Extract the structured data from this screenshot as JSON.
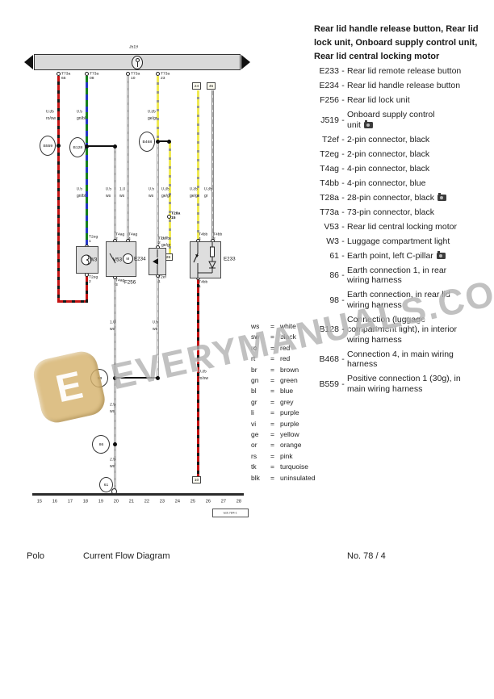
{
  "header": {
    "title": "Rear lid handle release button, Rear lid\nlock unit, Onboard supply control unit,\nRear lid central locking motor"
  },
  "legend": {
    "dash": "-",
    "items": [
      {
        "code": "E233",
        "desc": "Rear lid remote release button"
      },
      {
        "code": "E234",
        "desc": "Rear lid handle release button"
      },
      {
        "code": "F256",
        "desc": "Rear lid lock unit"
      },
      {
        "code": "J519",
        "desc": "Onboard supply control\nunit",
        "camera": true
      },
      {
        "code": "T2ef",
        "desc": "2-pin connector, black"
      },
      {
        "code": "T2eg",
        "desc": "2-pin connector, black"
      },
      {
        "code": "T4ag",
        "desc": "4-pin connector, black"
      },
      {
        "code": "T4bb",
        "desc": "4-pin connector, blue"
      },
      {
        "code": "T28a",
        "desc": "28-pin connector, black",
        "camera": true
      },
      {
        "code": "T73a",
        "desc": "73-pin connector, black"
      },
      {
        "code": "V53",
        "desc": "Rear lid central locking motor"
      },
      {
        "code": "W3",
        "desc": "Luggage compartment light"
      },
      {
        "code": "61",
        "desc": "Earth point, left C-pillar",
        "camera": true
      },
      {
        "code": "86",
        "desc": "Earth connection 1, in rear\nwiring harness"
      },
      {
        "code": "98",
        "desc": "Earth connection, in rear lid\nwiring harness"
      },
      {
        "code": "B128",
        "desc": "Connection (luggage\ncompartment light), in interior\nwiring harness"
      },
      {
        "code": "B468",
        "desc": "Connection 4, in main wiring\nharness"
      },
      {
        "code": "B559",
        "desc": "Positive connection 1 (30g), in\nmain wiring harness"
      }
    ]
  },
  "wire_key": {
    "eq": "=",
    "items": [
      {
        "code": "ws",
        "name": "white"
      },
      {
        "code": "sw",
        "name": "black"
      },
      {
        "code": "ro",
        "name": "red"
      },
      {
        "code": "rt",
        "name": "red"
      },
      {
        "code": "br",
        "name": "brown"
      },
      {
        "code": "gn",
        "name": "green"
      },
      {
        "code": "bl",
        "name": "blue"
      },
      {
        "code": "gr",
        "name": "grey"
      },
      {
        "code": "li",
        "name": "purple"
      },
      {
        "code": "vi",
        "name": "purple"
      },
      {
        "code": "ge",
        "name": "yellow"
      },
      {
        "code": "or",
        "name": "orange"
      },
      {
        "code": "rs",
        "name": "pink"
      },
      {
        "code": "tk",
        "name": "turquoise"
      },
      {
        "code": "blk",
        "name": "uninsulated"
      }
    ]
  },
  "diagram": {
    "bus_label": "J519",
    "palette": {
      "red": "#c41212",
      "black": "#161616",
      "green": "#15801c",
      "blue": "#2337c4",
      "yellow": "#f0ea52",
      "grey": "#b4b4b4",
      "white": "#fdfdfd",
      "bus_fill": "#d9d9d9"
    },
    "top_connectors": [
      {
        "name": "T73a",
        "pin": "65"
      },
      {
        "name": "T73a",
        "pin": "08"
      },
      {
        "name": "T73a",
        "pin": "10"
      },
      {
        "name": "T73a",
        "pin": "23"
      }
    ],
    "t28a": {
      "name": "T28a",
      "pin": "15"
    },
    "circles": {
      "b559": "B559",
      "b128": "B128",
      "b468": "B468",
      "p98": "98",
      "p86": "86",
      "p61": "61"
    },
    "refs": {
      "r1": "24",
      "r2": "45",
      "r3": "26",
      "r4": "10"
    },
    "labels": {
      "w3": "W3",
      "v53": "V53",
      "f256": "F256",
      "e234": "E234",
      "e233": "E233",
      "motor": "M"
    },
    "pins": {
      "w3t": {
        "name": "T2eg",
        "pin": "1"
      },
      "w3b": {
        "name": "T2eg",
        "pin": "2"
      },
      "v53a": {
        "name": "T4ag",
        "pin": "2"
      },
      "v53b": {
        "name": "T4ag",
        "pin": "4"
      },
      "v53c": {
        "name": "T4ag",
        "pin": "3"
      },
      "e234t": {
        "name": "T2ef",
        "pin": "2"
      },
      "e234b": {
        "name": "T2ef",
        "pin": "1"
      },
      "e233a": {
        "name": "T4bb",
        "pin": "4"
      },
      "e233b": {
        "name": "T4bb",
        "pin": "2"
      },
      "e233c": {
        "name": "T4bb",
        "pin": "1"
      }
    },
    "wire_labels": {
      "tl1": {
        "s": "0.35",
        "c": "ro/sw"
      },
      "tl2": {
        "s": "0.5",
        "c": "gn/bl"
      },
      "tl4": {
        "s": "0.35",
        "c": "ge/gr"
      },
      "ml2": {
        "s": "0.5",
        "c": "gn/bl"
      },
      "ml3": {
        "s": "0.5",
        "c": "ws"
      },
      "ml4": {
        "s": "1.0",
        "c": "ws"
      },
      "ml5": {
        "s": "0.5",
        "c": "ws"
      },
      "ml6": {
        "s": "0.35",
        "c": "ge/gr"
      },
      "ml7": {
        "s": "0.35",
        "c": "ge/gr"
      },
      "ml8": {
        "s": "0.35",
        "c": "gr"
      },
      "st6": {
        "s": "0.35",
        "c": "ge/gr"
      },
      "el1": {
        "s": "1.0",
        "c": "ws"
      },
      "el2": {
        "s": "0.5",
        "c": "ws"
      },
      "el3": {
        "s": "2.5",
        "c": "ws"
      },
      "el4": {
        "s": "2.5",
        "c": "ws"
      },
      "rl1": {
        "s": "0.35",
        "c": "ro/sw"
      }
    },
    "tracks": [
      "15",
      "16",
      "17",
      "18",
      "19",
      "20",
      "21",
      "22",
      "23",
      "24",
      "25",
      "26",
      "27",
      "28"
    ],
    "frame_ref": "wsb.78/4-1"
  },
  "watermark": {
    "logo": "E",
    "text": "EVERYMANUALS.COM"
  },
  "footer": {
    "model": "Polo",
    "title": "Current Flow Diagram",
    "number": "No. 78 / 4"
  }
}
